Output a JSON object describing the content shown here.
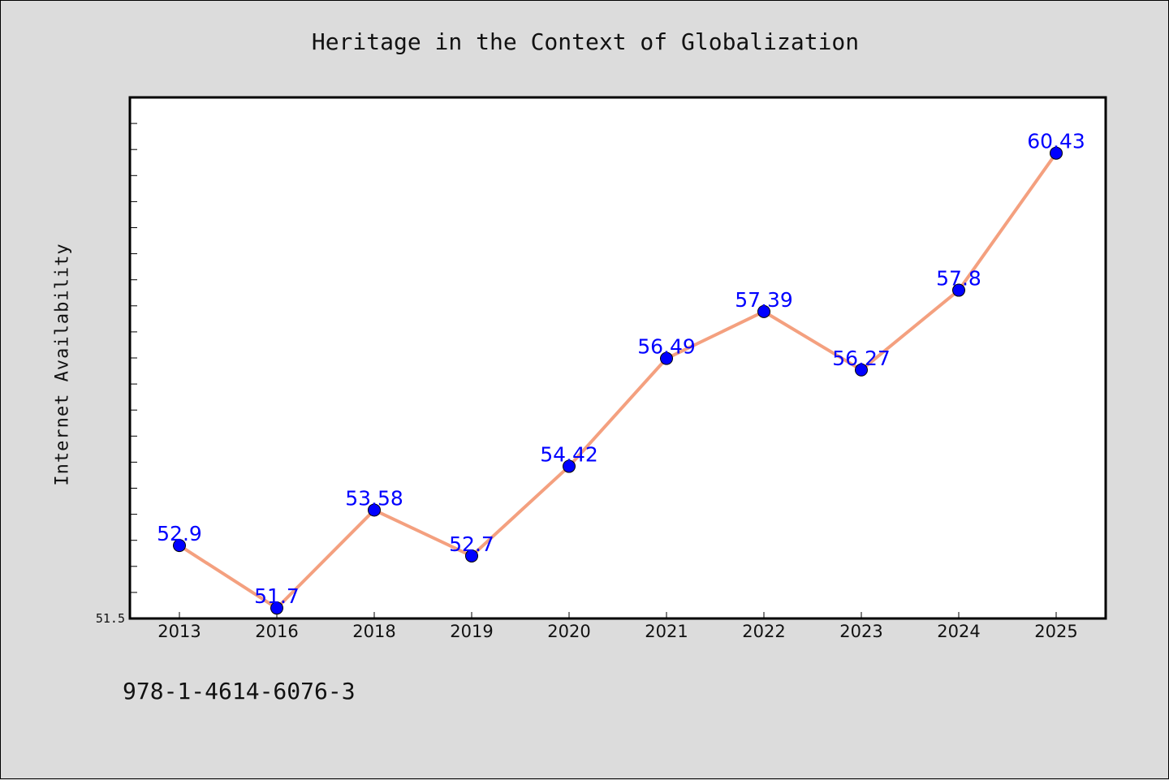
{
  "figure": {
    "title": "Heritage in the Context of Globalization",
    "footnote": "978-1-4614-6076-3"
  },
  "colors": {
    "background": "#dcdcdc",
    "plot_background": "#ffffff",
    "line": "#f4a07f",
    "marker": "#0000ff",
    "label": "#0000ff"
  },
  "chart_data": {
    "type": "line",
    "title": "Heritage in the Context of Globalization",
    "xlabel": "",
    "ylabel": "Internet Availability",
    "categories": [
      "2013",
      "2016",
      "2018",
      "2019",
      "2020",
      "2021",
      "2022",
      "2023",
      "2024",
      "2025"
    ],
    "series": [
      {
        "values": [
          52.9,
          51.7,
          53.58,
          52.7,
          54.42,
          56.49,
          57.39,
          56.27,
          57.8,
          60.43
        ],
        "labels": [
          "52.9",
          "51.7",
          "53.58",
          "52.7",
          "54.42",
          "56.49",
          "57.39",
          "56.27",
          "57.8",
          "60.43"
        ]
      }
    ],
    "ylim": [
      51.5,
      61.5
    ],
    "ytick_labels": [
      "51.5"
    ],
    "grid": false,
    "legend": "none"
  }
}
